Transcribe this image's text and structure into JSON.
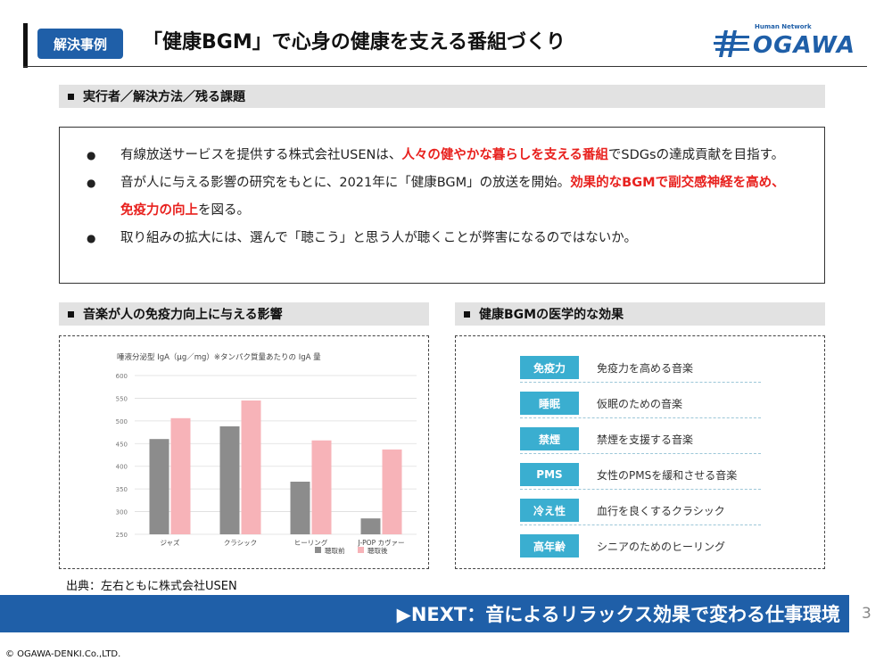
{
  "header": {
    "badge": "解決事例",
    "title": "「健康BGM」で心身の健康を支える番組づくり",
    "logo_small": "Human Network",
    "logo_word": "OGAWA",
    "accent_color": "#1f5fa8"
  },
  "section1": {
    "heading": "実行者／解決方法／残る課題",
    "bullets": [
      {
        "before": "有線放送サービスを提供する株式会社USENは、",
        "highlight": "人々の健やかな暮らしを支える番組",
        "after": "でSDGsの達成貢献を目指す。"
      },
      {
        "before": "音が人に与える影響の研究をもとに、2021年に「健康BGM」の放送を開始。",
        "highlight": "効果的なBGMで副交感神経を高め、免疫力の向上",
        "after": "を図る。"
      },
      {
        "before": "取り組みの拡大には、選んで「聴こう」と思う人が聴くことが弊害になるのではないか。",
        "highlight": "",
        "after": ""
      }
    ]
  },
  "section2": {
    "heading": "音楽が人の免疫力向上に与える影響"
  },
  "section3": {
    "heading": "健康BGMの医学的な効果",
    "items": [
      {
        "tag": "免疫力",
        "text": "免疫力を高める音楽"
      },
      {
        "tag": "睡眠",
        "text": "仮眠のための音楽"
      },
      {
        "tag": "禁煙",
        "text": "禁煙を支援する音楽"
      },
      {
        "tag": "PMS",
        "text": "女性のPMSを緩和させる音楽"
      },
      {
        "tag": "冷え性",
        "text": "血行を良くするクラシック"
      },
      {
        "tag": "高年齢",
        "text": "シニアのためのヒーリング"
      }
    ]
  },
  "chart_data": {
    "type": "bar",
    "title": "唾液分泌型 IgA（μg／mg）※タンパク質量あたりの IgA 量",
    "categories": [
      "ジャズ",
      "クラシック",
      "ヒーリング",
      "J-POP カヴァー"
    ],
    "series": [
      {
        "name": "聴取前",
        "values": [
          460,
          488,
          366,
          285
        ],
        "color": "#8c8c8c"
      },
      {
        "name": "聴取後",
        "values": [
          506,
          545,
          457,
          437
        ],
        "color": "#f7b3b8"
      }
    ],
    "yticks": [
      250,
      300,
      350,
      400,
      450,
      500,
      550,
      600
    ],
    "ylim": [
      250,
      600
    ],
    "grid": true,
    "legend_position": "bottom-right"
  },
  "source": "出典：左右ともに株式会社USEN",
  "next_banner": "▶NEXT：音によるリラックス効果で変わる仕事環境",
  "page_number": "3",
  "copyright": "© OGAWA-DENKI.Co.,LTD."
}
